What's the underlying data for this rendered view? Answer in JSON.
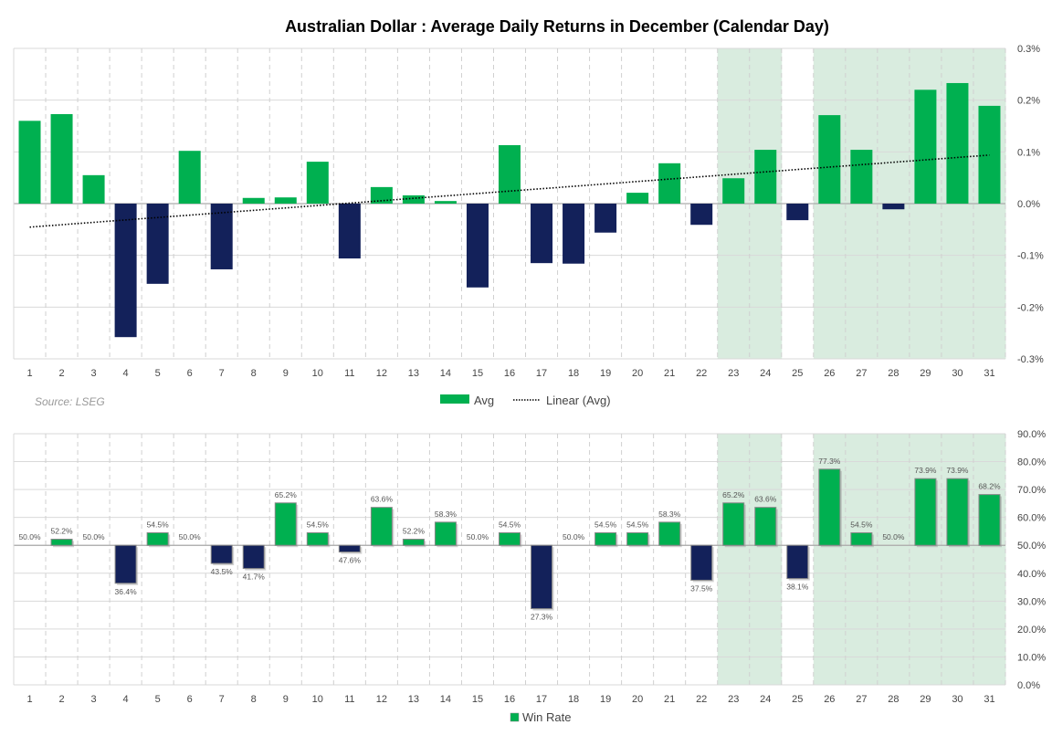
{
  "chart_data": [
    {
      "type": "bar",
      "title": "Australian Dollar : Average Daily Returns in December (Calendar Day)",
      "source": "Source: LSEG",
      "categories": [
        "1",
        "2",
        "3",
        "4",
        "5",
        "6",
        "7",
        "8",
        "9",
        "10",
        "11",
        "12",
        "13",
        "14",
        "15",
        "16",
        "17",
        "18",
        "19",
        "20",
        "21",
        "22",
        "23",
        "24",
        "25",
        "26",
        "27",
        "28",
        "29",
        "30",
        "31"
      ],
      "series": [
        {
          "name": "Avg",
          "values": [
            0.16,
            0.173,
            0.055,
            -0.258,
            -0.155,
            0.102,
            -0.127,
            0.011,
            0.012,
            0.081,
            -0.106,
            0.032,
            0.016,
            0.005,
            -0.162,
            0.113,
            -0.115,
            -0.116,
            -0.056,
            0.021,
            0.078,
            -0.041,
            0.049,
            0.104,
            -0.032,
            0.171,
            0.104,
            -0.011,
            0.22,
            0.233,
            0.189
          ]
        }
      ],
      "trendline": {
        "name": "Linear (Avg)",
        "type": "linear"
      },
      "yticks": [
        "0.3%",
        "0.2%",
        "0.1%",
        "0.0%",
        "-0.1%",
        "-0.2%",
        "-0.3%"
      ],
      "ylim": [
        -0.3,
        0.3
      ],
      "yunit": "%",
      "y_axis_side": "right",
      "shaded_days": [
        23,
        24,
        26,
        27,
        28,
        29,
        30,
        31
      ],
      "legend": [
        "Avg",
        "Linear (Avg)"
      ],
      "legend_position": "bottom",
      "grid": true,
      "colors": {
        "positive": "#00b050",
        "negative": "#13215a",
        "shade": "#d9ecdf",
        "trend": "#000000"
      }
    },
    {
      "type": "bar",
      "categories": [
        "1",
        "2",
        "3",
        "4",
        "5",
        "6",
        "7",
        "8",
        "9",
        "10",
        "11",
        "12",
        "13",
        "14",
        "15",
        "16",
        "17",
        "18",
        "19",
        "20",
        "21",
        "22",
        "23",
        "24",
        "25",
        "26",
        "27",
        "28",
        "29",
        "30",
        "31"
      ],
      "series": [
        {
          "name": "Win Rate",
          "values": [
            50.0,
            52.2,
            50.0,
            36.4,
            54.5,
            50.0,
            43.5,
            41.7,
            65.2,
            54.5,
            47.6,
            63.6,
            52.2,
            58.3,
            50.0,
            54.5,
            27.3,
            50.0,
            54.5,
            54.5,
            58.3,
            37.5,
            65.2,
            63.6,
            38.1,
            77.3,
            54.5,
            50.0,
            73.9,
            73.9,
            68.2
          ]
        }
      ],
      "data_labels": [
        "50.0%",
        "52.2%",
        "50.0%",
        "36.4%",
        "54.5%",
        "50.0%",
        "43.5%",
        "41.7%",
        "65.2%",
        "54.5%",
        "47.6%",
        "63.6%",
        "52.2%",
        "58.3%",
        "50.0%",
        "54.5%",
        "27.3%",
        "50.0%",
        "54.5%",
        "54.5%",
        "58.3%",
        "37.5%",
        "65.2%",
        "63.6%",
        "38.1%",
        "77.3%",
        "54.5%",
        "50.0%",
        "73.9%",
        "73.9%",
        "68.2%"
      ],
      "baseline": 50,
      "yticks": [
        "90.0%",
        "80.0%",
        "70.0%",
        "60.0%",
        "50.0%",
        "40.0%",
        "30.0%",
        "20.0%",
        "10.0%",
        "0.0%"
      ],
      "ylim": [
        0,
        90
      ],
      "y_axis_side": "right",
      "shaded_days": [
        23,
        24,
        26,
        27,
        28,
        29,
        30,
        31
      ],
      "legend": [
        "Win Rate"
      ],
      "legend_position": "bottom",
      "grid": true,
      "colors": {
        "positive": "#00b050",
        "negative": "#13215a",
        "shade": "#d9ecdf"
      }
    }
  ]
}
